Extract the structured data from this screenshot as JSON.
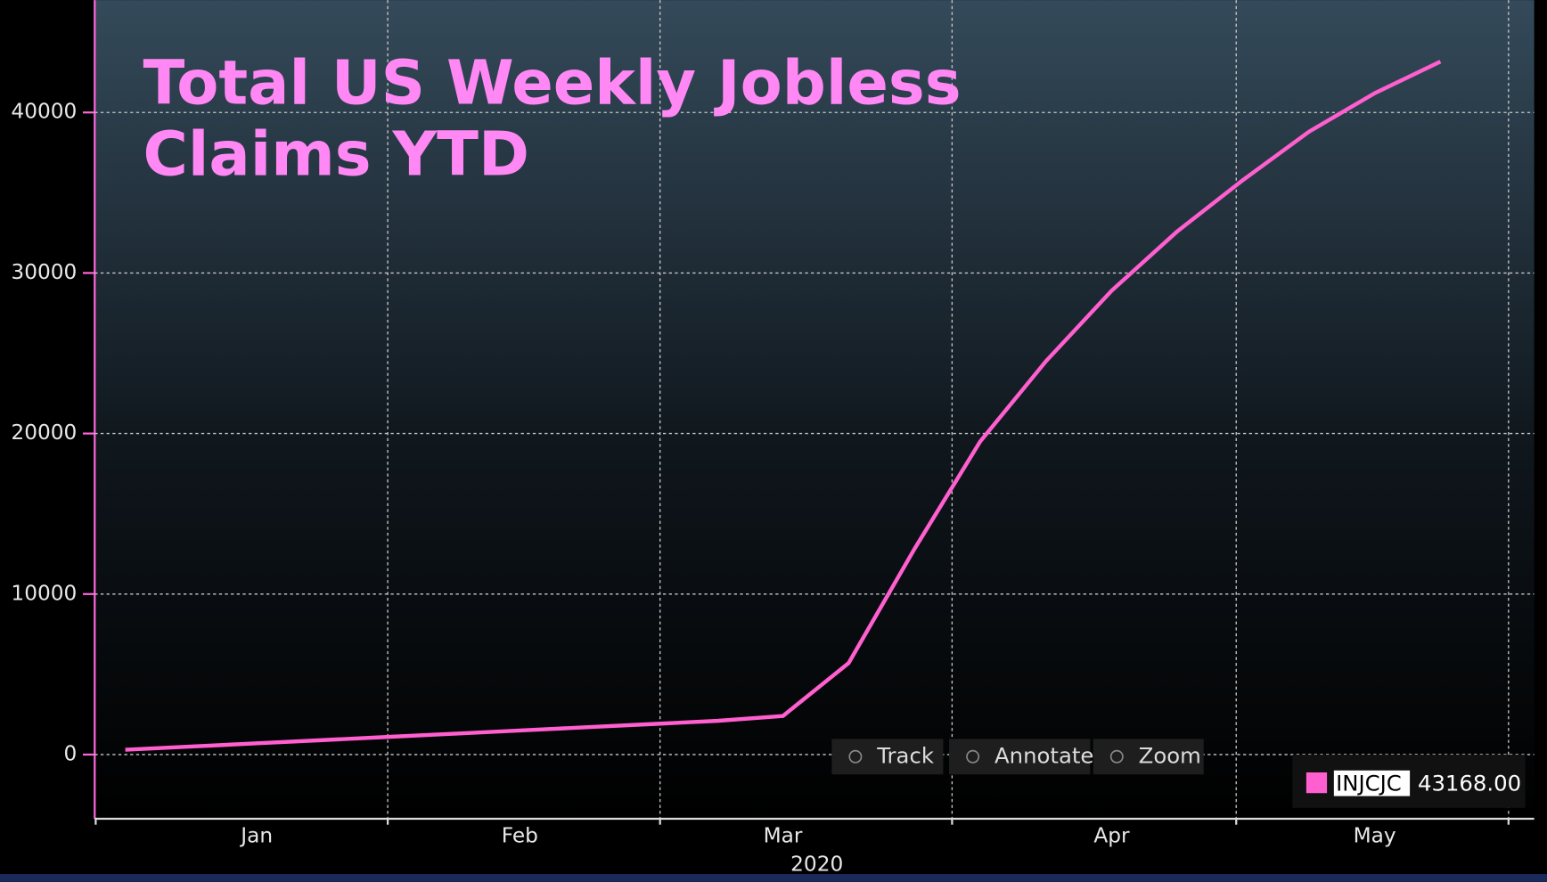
{
  "chart_data": {
    "type": "line",
    "title": [
      "Total US Weekly Jobless",
      "Claims YTD"
    ],
    "categories": [
      null,
      null,
      "Jan",
      null,
      null,
      null,
      "Feb",
      null,
      null,
      null,
      "Mar",
      null,
      null,
      null,
      null,
      "Apr",
      null,
      null,
      null,
      "May",
      null
    ],
    "xlabel": "2020",
    "series": [
      {
        "name": "INJCJC",
        "color": "#ff5fcf",
        "values": [
          300,
          500,
          700,
          900,
          1100,
          1300,
          1500,
          1700,
          1900,
          2100,
          2400,
          5700,
          12800,
          19500,
          24500,
          28900,
          32600,
          35800,
          38800,
          41200,
          43168
        ],
        "value_labels": [
          null,
          null,
          null,
          null,
          null,
          null,
          null,
          null,
          null,
          null,
          null,
          null,
          null,
          null,
          null,
          null,
          null,
          null,
          null,
          null,
          "43168.00"
        ]
      }
    ],
    "ylim": [
      -4000,
      47000
    ],
    "yticks": [
      0,
      10000,
      20000,
      30000,
      40000
    ],
    "grid": true,
    "toolbar": [
      "Track",
      "Annotate",
      "Zoom"
    ]
  }
}
